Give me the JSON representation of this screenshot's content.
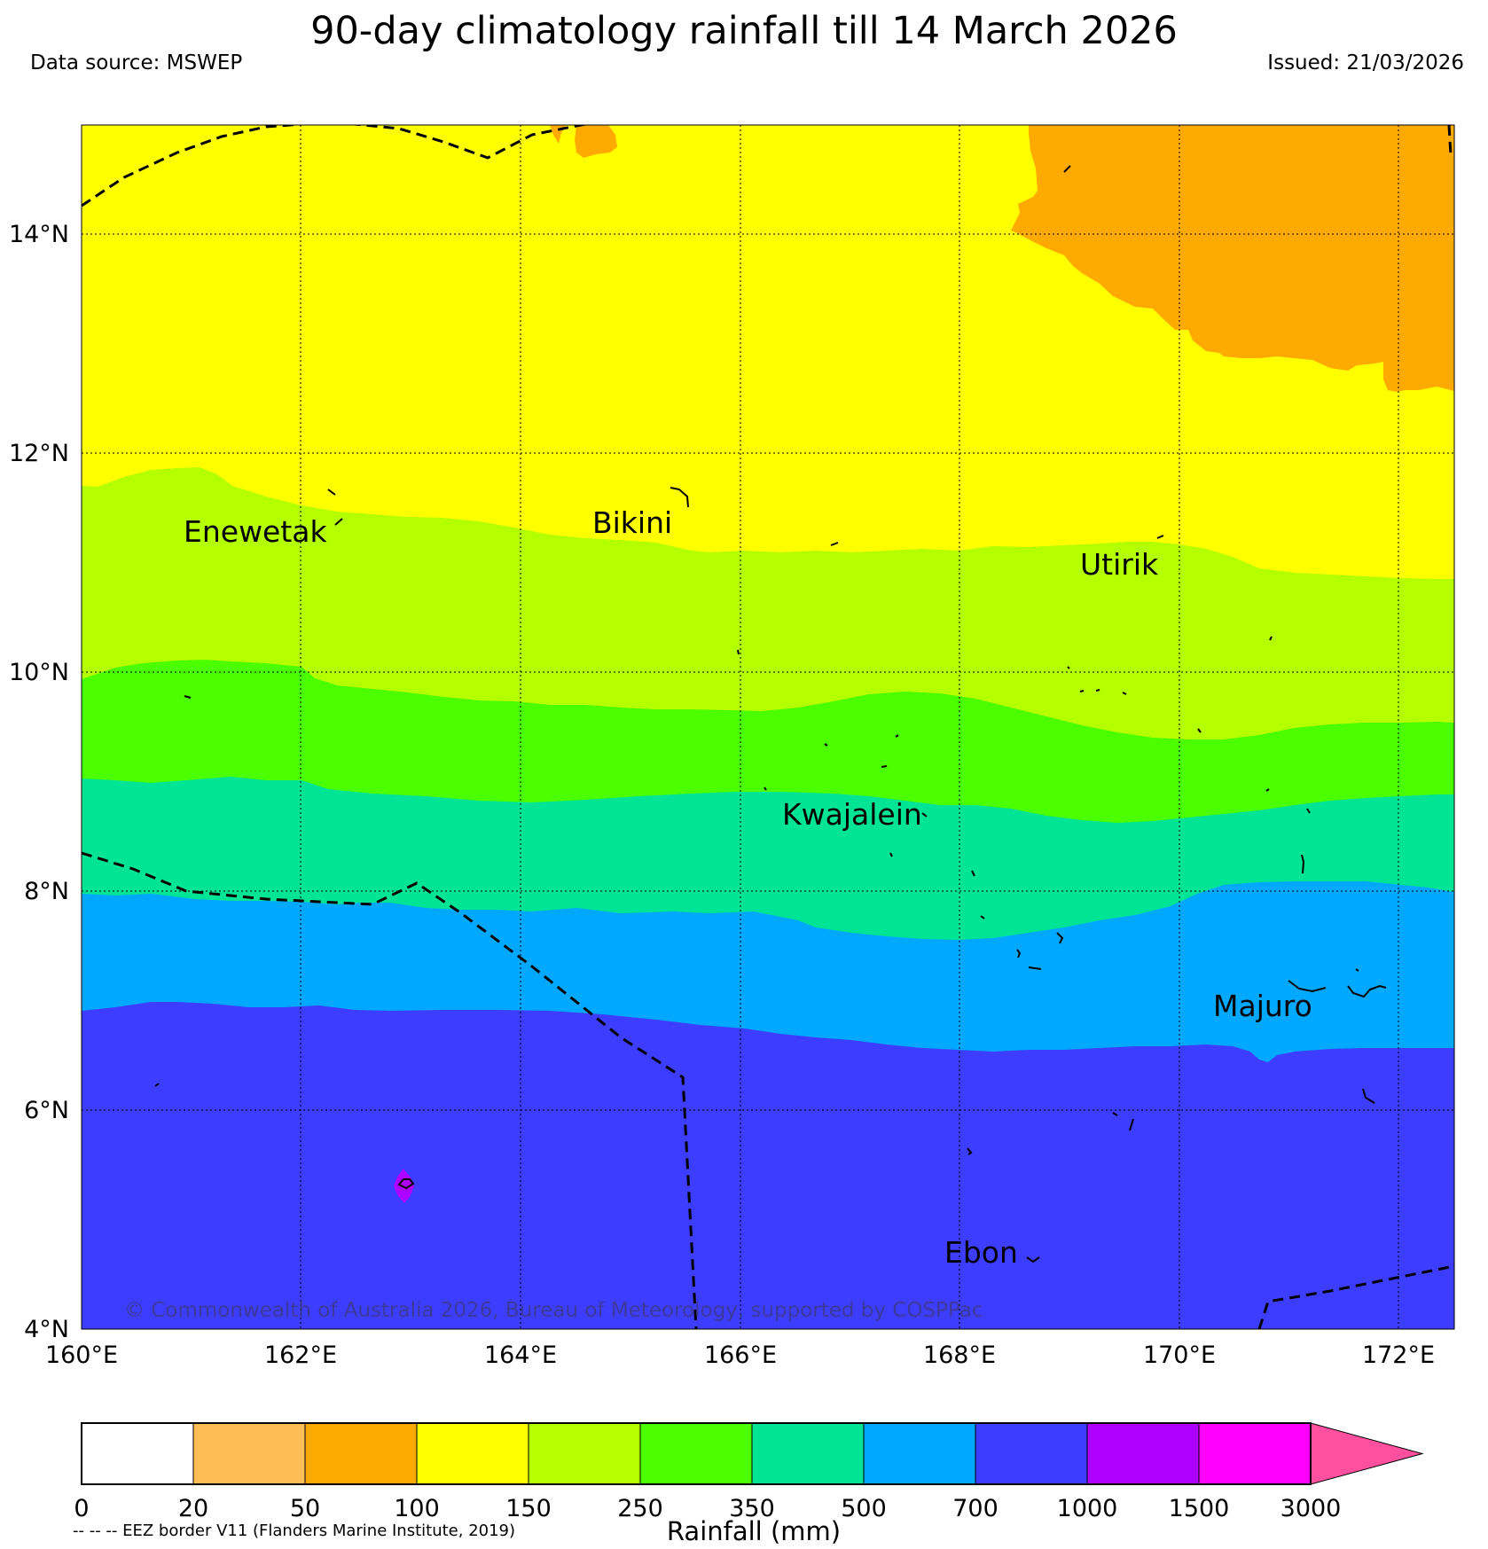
{
  "header": {
    "title": "90-day climatology rainfall till 14 March 2026",
    "source": "Data source: MSWEP",
    "issued": "Issued: 21/03/2026"
  },
  "axes": {
    "lat_labels": [
      "14°N",
      "12°N",
      "10°N",
      "8°N",
      "6°N",
      "4°N"
    ],
    "lon_labels": [
      "160°E",
      "162°E",
      "164°E",
      "166°E",
      "168°E",
      "170°E",
      "172°E"
    ],
    "lat_range": [
      4,
      15
    ],
    "lon_range": [
      160,
      172.5
    ]
  },
  "places": {
    "enewetak": "Enewetak",
    "bikini": "Bikini",
    "utirik": "Utirik",
    "kwajalein": "Kwajalein",
    "majuro": "Majuro",
    "ebon": "Ebon"
  },
  "copyright": "© Commonwealth of Australia 2026, Bureau of Meteorology, supported by COSPPac",
  "colorbar": {
    "title": "Rainfall (mm)",
    "labels": [
      "0",
      "20",
      "50",
      "100",
      "150",
      "250",
      "350",
      "500",
      "700",
      "1000",
      "1500",
      "3000"
    ],
    "colors": [
      "#ffffff",
      "#ffbd55",
      "#ffaa00",
      "#ffff00",
      "#b4ff00",
      "#4bff00",
      "#00e495",
      "#00a9ff",
      "#3d3dff",
      "#ad00ff",
      "#ff00ff",
      "#ff50a0"
    ]
  },
  "eez_note": "-- -- -- EEZ border V11 (Flanders Marine Institute, 2019)"
}
